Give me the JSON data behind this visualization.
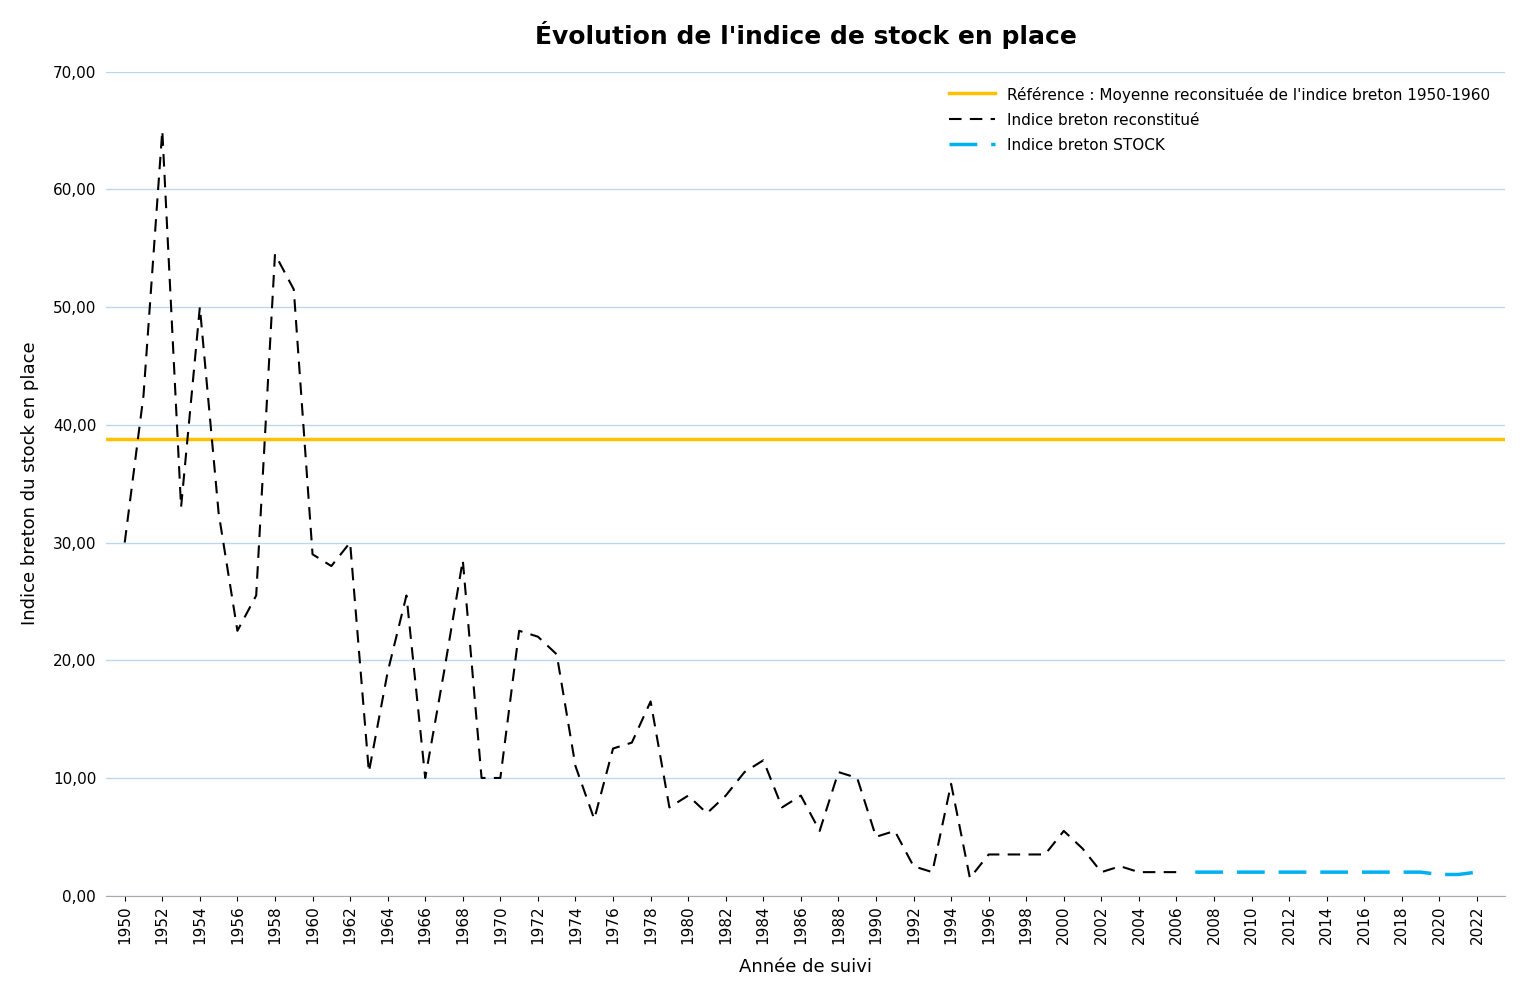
{
  "title": "Évolution de l'indice de stock en place",
  "xlabel": "Année de suivi",
  "ylabel": "Indice breton du stock en place",
  "ylim": [
    0,
    70
  ],
  "yticks": [
    0,
    10,
    20,
    30,
    40,
    50,
    60,
    70
  ],
  "reference_value": 38.8,
  "reference_color": "#FFC000",
  "reference_label": "Référence : Moyenne reconsituée de l'indice breton 1950-1960",
  "dashed_label": "Indice breton reconstitué",
  "stock_label": "Indice breton STOCK",
  "stock_color": "#00B0F0",
  "dashed_color": "#000000",
  "background_color": "#FFFFFF",
  "grid_color": "#BDD7EE",
  "reconstitue_years": [
    1950,
    1951,
    1952,
    1953,
    1954,
    1955,
    1956,
    1957,
    1958,
    1959,
    1960,
    1961,
    1962,
    1963,
    1964,
    1965,
    1966,
    1967,
    1968,
    1969,
    1970,
    1971,
    1972,
    1973,
    1974,
    1975,
    1976,
    1977,
    1978,
    1979,
    1980,
    1981,
    1982,
    1983,
    1984,
    1985,
    1986,
    1987,
    1988,
    1989,
    1990,
    1991,
    1992,
    1993,
    1994,
    1995,
    1996,
    1997,
    1998,
    1999,
    2000,
    2001,
    2002,
    2003,
    2004,
    2005,
    2006
  ],
  "reconstitue_values": [
    30.0,
    42.5,
    65.0,
    33.0,
    50.0,
    32.5,
    22.5,
    25.5,
    54.5,
    51.5,
    29.0,
    28.0,
    30.0,
    10.5,
    19.0,
    25.5,
    10.0,
    19.0,
    28.5,
    10.0,
    10.0,
    22.5,
    22.0,
    20.5,
    11.0,
    6.5,
    12.5,
    13.0,
    16.5,
    7.5,
    8.5,
    7.0,
    8.5,
    10.5,
    11.5,
    7.5,
    8.5,
    5.5,
    10.5,
    10.0,
    5.0,
    5.5,
    2.5,
    2.0,
    9.5,
    1.5,
    3.5,
    3.5,
    3.5,
    3.5,
    5.5,
    4.0,
    2.0,
    2.5,
    2.0,
    2.0,
    2.0
  ],
  "stock_years": [
    2007,
    2008,
    2009,
    2010,
    2011,
    2012,
    2013,
    2014,
    2015,
    2016,
    2017,
    2018,
    2019,
    2020,
    2021,
    2022
  ],
  "stock_values": [
    2.0,
    2.0,
    2.0,
    2.0,
    2.0,
    2.0,
    2.0,
    2.0,
    2.0,
    2.0,
    2.0,
    2.0,
    2.0,
    1.8,
    1.8,
    2.0
  ]
}
